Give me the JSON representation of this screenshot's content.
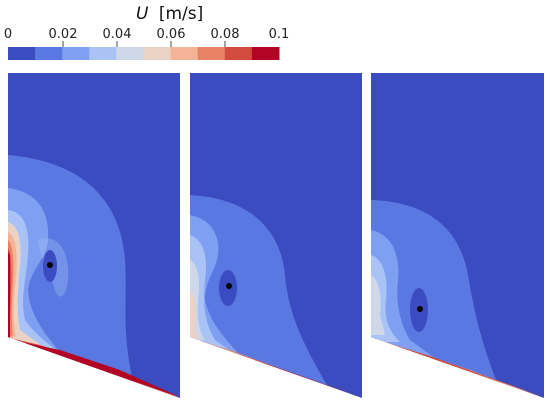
{
  "colorbar": {
    "symbol": "U",
    "unit": "[m/s]",
    "ticks": [
      "0",
      "0.02",
      "0.04",
      "0.06",
      "0.08",
      "0.1"
    ],
    "colors": [
      "#3b4cc0",
      "#5a78e2",
      "#7f9ff2",
      "#a9c3f6",
      "#cfd8e8",
      "#ead3c4",
      "#f4b396",
      "#e88465",
      "#d24b3f",
      "#b40426"
    ]
  },
  "panels": [
    {
      "id": "left"
    },
    {
      "id": "middle"
    },
    {
      "id": "right"
    }
  ]
}
